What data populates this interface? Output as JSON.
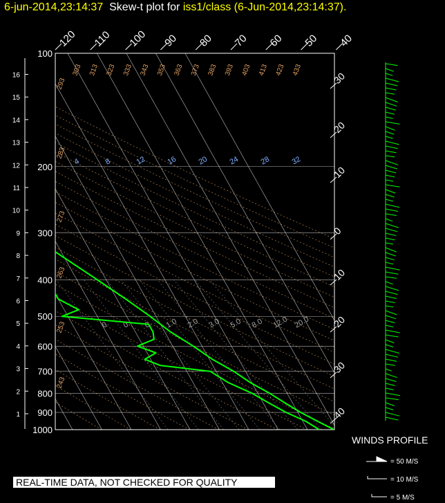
{
  "header": {
    "timestamp": "6-jun-2014,23:14:37",
    "plot_label": "Skew-t plot for",
    "station": "iss1/class",
    "station_time": "(6-Jun-2014,23:14:37)",
    "period": "."
  },
  "disclaimer": "REAL-TIME DATA, NOT CHECKED FOR QUALITY",
  "winds": {
    "title": "WINDS PROFILE",
    "legend": [
      "= 50 M/S",
      "= 10 M/S",
      "= 5 M/S"
    ]
  },
  "colors": {
    "background": "#000000",
    "profile": "#00ff00",
    "header_yellow": "#ffff00",
    "isotherm": "#ffffff",
    "dry_adiabat": "#e0a060",
    "moist_adiabat": "#a0a0a0",
    "mixing_ratio": "#80b0ff"
  },
  "chart_data": {
    "type": "line",
    "title": "Skew-t plot",
    "y_axis_pressure_hPa": [
      100,
      200,
      300,
      400,
      500,
      600,
      700,
      800,
      900,
      1000
    ],
    "y_axis_height_km": [
      1,
      2,
      3,
      4,
      5,
      6,
      7,
      8,
      9,
      10,
      11,
      12,
      13,
      14,
      15,
      16
    ],
    "isotherm_labels_top": [
      "-120",
      "-110",
      "-100",
      "-90",
      "-80",
      "-70",
      "-60",
      "-50",
      "-40"
    ],
    "isotherm_labels_right": [
      "-30",
      "-20",
      "-10",
      "0",
      "10",
      "20",
      "30",
      "40"
    ],
    "dry_adiabat_labels_top": [
      "303",
      "313",
      "323",
      "333",
      "343",
      "353",
      "363",
      "373",
      "383",
      "393",
      "403",
      "413",
      "423",
      "433"
    ],
    "dry_adiabat_labels_left": [
      "293",
      "283",
      "273",
      "263",
      "253",
      "243"
    ],
    "mixing_ratio_labels_upper": [
      "4",
      "8",
      "12",
      "16",
      "20",
      "24",
      "28",
      "32"
    ],
    "moist_labels_lower": [
      "0.",
      "0.",
      "0.",
      "1.0",
      "2.0",
      "3.0",
      "5.0",
      "8.0",
      "12.0",
      "20.0"
    ],
    "series": [
      {
        "name": "Temperature",
        "p": [
          1000,
          950,
          900,
          850,
          800,
          750,
          700,
          650,
          600,
          550,
          500,
          450,
          400,
          350,
          300,
          250,
          225,
          200,
          175,
          150,
          125,
          110,
          100
        ],
        "t": [
          29,
          25,
          21,
          17.5,
          14,
          9.5,
          6,
          1,
          -3,
          -8,
          -12,
          -17,
          -23,
          -30,
          -38,
          -47,
          -51,
          -55,
          -58,
          -55,
          -52,
          -50,
          -48
        ]
      },
      {
        "name": "Dewpoint",
        "p": [
          1000,
          950,
          900,
          850,
          800,
          750,
          700,
          675,
          650,
          625,
          600,
          575,
          550,
          525,
          500,
          480,
          450,
          400,
          350,
          300,
          250,
          200,
          175,
          150,
          125,
          100
        ],
        "t": [
          24,
          21,
          16,
          12,
          8,
          2,
          -2,
          -18,
          -22,
          -17,
          -22,
          -15,
          -14,
          -14,
          -42,
          -35,
          -40,
          -40,
          -48,
          -55,
          -62,
          -72,
          -70,
          -78,
          -82,
          -85
        ]
      }
    ],
    "xlim": [
      -40,
      40
    ],
    "ylim": [
      1000,
      100
    ],
    "grid": true
  }
}
